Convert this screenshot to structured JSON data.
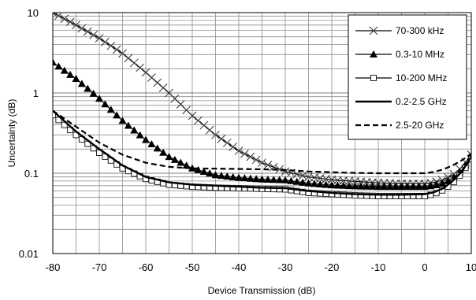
{
  "chart_data": {
    "type": "line",
    "title": "",
    "xlabel": "Device Transmission (dB)",
    "ylabel": "Uncertainty (dB)",
    "xlim": [
      -80,
      10
    ],
    "ylim": [
      0.01,
      10
    ],
    "yscale": "log",
    "grid": true,
    "legend_position": "top-right",
    "x_ticks": [
      "-80",
      "-70",
      "-60",
      "-50",
      "-40",
      "-30",
      "-20",
      "-10",
      "0",
      "10"
    ],
    "y_ticks": [
      "0.01",
      "0.1",
      "1",
      "10"
    ],
    "series": [
      {
        "name": "70-300 kHz",
        "marker": "x",
        "line_style": "solid",
        "color": "#000000",
        "x": [
          -80,
          -75,
          -70,
          -65,
          -60,
          -55,
          -50,
          -45,
          -40,
          -35,
          -30,
          -25,
          -20,
          -15,
          -10,
          -5,
          0,
          2,
          4,
          6,
          8,
          10
        ],
        "y": [
          10,
          7.0,
          4.8,
          3.1,
          1.8,
          1.0,
          0.52,
          0.3,
          0.19,
          0.135,
          0.105,
          0.09,
          0.083,
          0.079,
          0.076,
          0.074,
          0.074,
          0.077,
          0.083,
          0.095,
          0.12,
          0.17
        ]
      },
      {
        "name": "0.3-10 MHz",
        "marker": "triangle",
        "line_style": "solid",
        "color": "#000000",
        "x": [
          -80,
          -75,
          -70,
          -65,
          -60,
          -55,
          -50,
          -45,
          -40,
          -35,
          -30,
          -25,
          -20,
          -15,
          -10,
          -5,
          0,
          2,
          4,
          6,
          8,
          10
        ],
        "y": [
          2.4,
          1.5,
          0.85,
          0.45,
          0.26,
          0.16,
          0.115,
          0.095,
          0.088,
          0.084,
          0.082,
          0.075,
          0.071,
          0.069,
          0.068,
          0.068,
          0.068,
          0.07,
          0.075,
          0.085,
          0.11,
          0.16
        ]
      },
      {
        "name": "10-200 MHz",
        "marker": "square",
        "line_style": "solid",
        "color": "#000000",
        "x": [
          -80,
          -75,
          -70,
          -65,
          -60,
          -55,
          -50,
          -45,
          -40,
          -35,
          -30,
          -25,
          -20,
          -15,
          -10,
          -5,
          0,
          2,
          4,
          6,
          8,
          10
        ],
        "y": [
          0.53,
          0.3,
          0.18,
          0.115,
          0.085,
          0.072,
          0.068,
          0.066,
          0.065,
          0.064,
          0.063,
          0.057,
          0.055,
          0.053,
          0.052,
          0.052,
          0.052,
          0.055,
          0.062,
          0.075,
          0.1,
          0.15
        ]
      },
      {
        "name": "0.2-2.5 GHz",
        "marker": "none",
        "line_style": "solid-thick",
        "color": "#000000",
        "x": [
          -80,
          -75,
          -70,
          -65,
          -60,
          -55,
          -50,
          -45,
          -40,
          -35,
          -30,
          -25,
          -20,
          -15,
          -10,
          -5,
          0,
          2,
          4,
          6,
          8,
          10
        ],
        "y": [
          0.6,
          0.33,
          0.2,
          0.125,
          0.09,
          0.077,
          0.072,
          0.07,
          0.068,
          0.066,
          0.065,
          0.06,
          0.057,
          0.055,
          0.054,
          0.054,
          0.055,
          0.058,
          0.065,
          0.08,
          0.105,
          0.16
        ]
      },
      {
        "name": "2.5-20 GHz",
        "marker": "none",
        "line_style": "dashed",
        "color": "#000000",
        "x": [
          -80,
          -75,
          -70,
          -65,
          -60,
          -55,
          -50,
          -45,
          -40,
          -35,
          -30,
          -25,
          -20,
          -15,
          -10,
          -5,
          0,
          2,
          4,
          6,
          8,
          10
        ],
        "y": [
          0.6,
          0.38,
          0.24,
          0.17,
          0.135,
          0.12,
          0.115,
          0.114,
          0.113,
          0.112,
          0.11,
          0.105,
          0.103,
          0.101,
          0.1,
          0.1,
          0.1,
          0.104,
          0.112,
          0.125,
          0.145,
          0.175
        ]
      }
    ]
  }
}
